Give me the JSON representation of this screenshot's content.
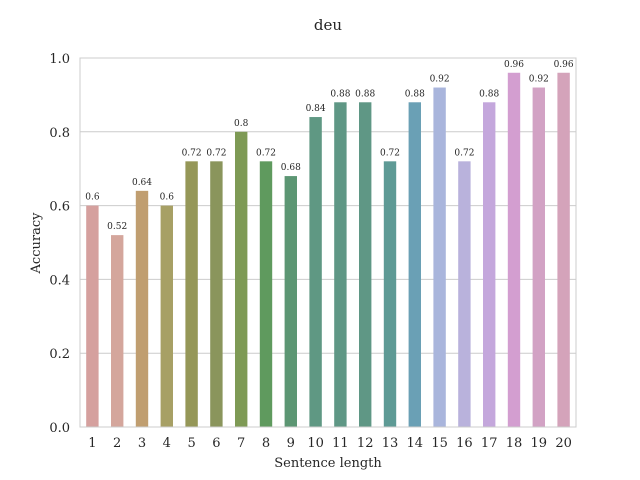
{
  "chart_data": {
    "type": "bar",
    "title": "deu",
    "xlabel": "Sentence length",
    "ylabel": "Accuracy",
    "ylim": [
      0,
      1.0
    ],
    "yticks": [
      "0.0",
      "0.2",
      "0.4",
      "0.6",
      "0.8",
      "1.0"
    ],
    "grid": "horizontal",
    "categories": [
      "1",
      "2",
      "3",
      "4",
      "5",
      "6",
      "7",
      "8",
      "9",
      "10",
      "11",
      "12",
      "13",
      "14",
      "15",
      "16",
      "17",
      "18",
      "19",
      "20"
    ],
    "values": [
      0.6,
      0.52,
      0.64,
      0.6,
      0.72,
      0.72,
      0.8,
      0.72,
      0.68,
      0.84,
      0.88,
      0.88,
      0.72,
      0.88,
      0.92,
      0.72,
      0.88,
      0.96,
      0.92,
      0.96
    ],
    "data_labels": [
      "0.6",
      "0.52",
      "0.64",
      "0.6",
      "0.72",
      "0.72",
      "0.8",
      "0.72",
      "0.68",
      "0.84",
      "0.88",
      "0.88",
      "0.72",
      "0.88",
      "0.92",
      "0.72",
      "0.88",
      "0.96",
      "0.92",
      "0.96"
    ],
    "colors": [
      "#d5a09e",
      "#d4a69c",
      "#c09e70",
      "#a7a065",
      "#959758",
      "#8a955c",
      "#7e9a55",
      "#5f9a5e",
      "#5c9673",
      "#5f9883",
      "#5f9785",
      "#5f9785",
      "#5e9a95",
      "#6aa0b5",
      "#a9b5dc",
      "#b9b2dc",
      "#c4a7dc",
      "#d39ed0",
      "#d2a2c4",
      "#d4a3ba"
    ]
  }
}
